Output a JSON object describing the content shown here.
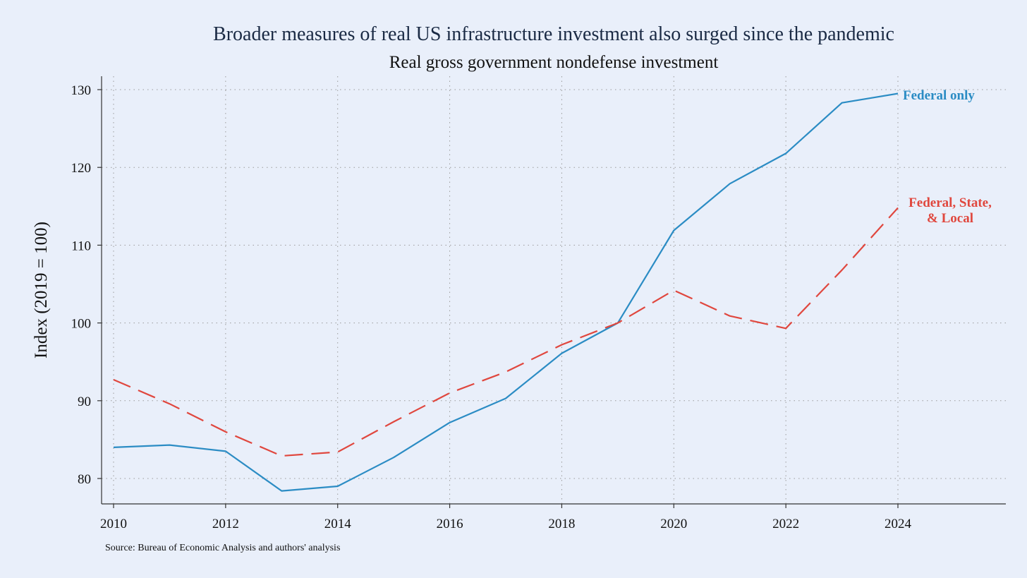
{
  "chart_data": {
    "type": "line",
    "title": "Broader measures of real US infrastructure investment also surged since the pandemic",
    "subtitle": "Real gross government nondefense investment",
    "ylabel": "Index (2019 = 100)",
    "xlabel": "",
    "x": [
      2010,
      2011,
      2012,
      2013,
      2014,
      2015,
      2016,
      2017,
      2018,
      2019,
      2020,
      2021,
      2022,
      2023,
      2024
    ],
    "xlim": [
      2010,
      2025.7
    ],
    "ylim": [
      76.7,
      131.5
    ],
    "x_ticks": [
      2010,
      2012,
      2014,
      2016,
      2018,
      2020,
      2022,
      2024
    ],
    "y_ticks": [
      80,
      90,
      100,
      110,
      120,
      130
    ],
    "grid": true,
    "series": [
      {
        "name": "Federal only",
        "color": "#2b8cc4",
        "style": "solid",
        "values": [
          84.0,
          84.3,
          83.5,
          78.4,
          79.0,
          82.7,
          87.2,
          90.3,
          96.1,
          100.0,
          111.9,
          117.9,
          121.8,
          128.3,
          129.5
        ]
      },
      {
        "name": "Federal, State, & Local",
        "label_lines": [
          "Federal, State,",
          "& Local"
        ],
        "color": "#e0473e",
        "style": "dashed",
        "values": [
          92.7,
          89.6,
          86.0,
          82.9,
          83.4,
          87.3,
          91.0,
          93.7,
          97.2,
          100.0,
          104.2,
          100.9,
          99.3,
          106.8,
          114.8
        ]
      }
    ],
    "source": "Source: Bureau of Economic Analysis and authors' analysis"
  }
}
